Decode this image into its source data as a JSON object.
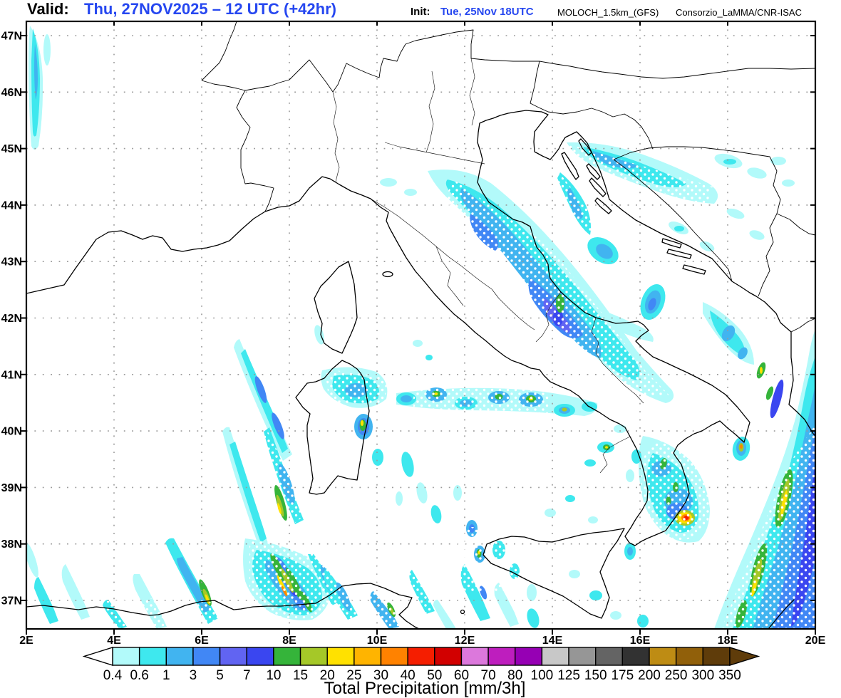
{
  "header": {
    "valid_label": "Valid:",
    "valid_value": "Thu, 27NOV2025 – 12 UTC (+42hr)",
    "init_label": "Init:",
    "init_value": "Tue, 25Nov 18UTC",
    "model": "MOLOCH_1.5km_(GFS)",
    "credit": "Consorzio_LaMMA/CNR-ISAC"
  },
  "colors": {
    "title_blue": "#2647F0"
  },
  "axes": {
    "lat_labels": [
      "47N",
      "46N",
      "45N",
      "44N",
      "43N",
      "42N",
      "41N",
      "40N",
      "39N",
      "38N",
      "37N"
    ],
    "lon_labels": [
      "2E",
      "4E",
      "6E",
      "8E",
      "10E",
      "12E",
      "14E",
      "16E",
      "18E",
      "20E"
    ]
  },
  "legend": {
    "title": "Total Precipitation [mm/3h]",
    "tick_labels": [
      "0.4",
      "0.6",
      "1",
      "3",
      "5",
      "7",
      "10",
      "15",
      "20",
      "25",
      "30",
      "40",
      "50",
      "60",
      "70",
      "80",
      "100",
      "125",
      "150",
      "175",
      "200",
      "250",
      "300",
      "350"
    ],
    "cell_colors": [
      "#B2FAFA",
      "#3EE8EE",
      "#41B4F0",
      "#4187F5",
      "#6164F2",
      "#3A46F0",
      "#35B43A",
      "#A5C828",
      "#FFE100",
      "#FFB400",
      "#FF8200",
      "#F51E00",
      "#D20000",
      "#DC78DC",
      "#BE1EBE",
      "#9600B4",
      "#C8C8C8",
      "#969696",
      "#646464",
      "#323232",
      "#BE8C14",
      "#91600A",
      "#5F3C0A"
    ],
    "under_range_color": "#FFFFFF",
    "over_range_color": "#5F3C0A"
  }
}
